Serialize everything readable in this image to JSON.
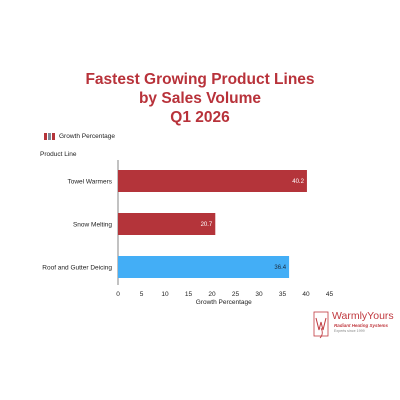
{
  "chart_data": {
    "type": "bar",
    "orientation": "horizontal",
    "title_lines": [
      "Fastest Growing Product Lines",
      "by Sales Volume",
      "Q1 2026"
    ],
    "legend": [
      {
        "label": "Growth Percentage"
      }
    ],
    "ylabel": "Product Line",
    "xlabel": "Growth Percentage",
    "categories": [
      "Towel Warmers",
      "Snow Melting",
      "Roof and Gutter Deicing"
    ],
    "values": [
      40.2,
      20.7,
      36.4
    ],
    "data_labels": [
      "40.2",
      "20.7",
      "36.4"
    ],
    "bar_colors": [
      "#b4343a",
      "#b4343a",
      "#43aef6"
    ],
    "xlim": [
      0,
      45
    ],
    "xticks": [
      0,
      5,
      10,
      15,
      20,
      25,
      30,
      35,
      40,
      45
    ],
    "grid": false,
    "legend_position": "top-left"
  },
  "colors": {
    "title": "#b8323a",
    "legend_swatches": [
      "#b4343a",
      "#7c8a99",
      "#b4343a"
    ]
  },
  "logo": {
    "name": "WarmlyYours",
    "tagline": "Radiant Heating Systems",
    "since": "Experts since 1999"
  }
}
